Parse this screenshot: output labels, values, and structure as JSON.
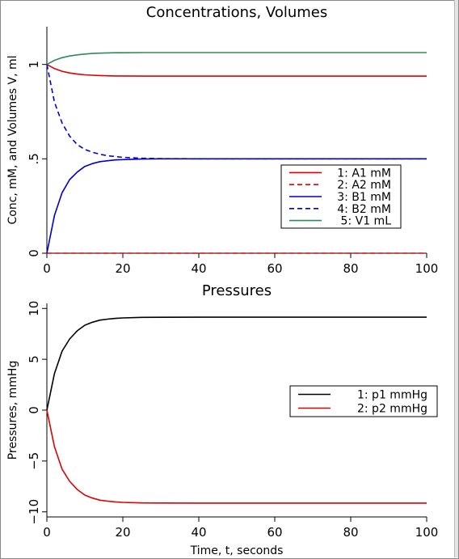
{
  "chart_data": [
    {
      "type": "line",
      "title": "Concentrations, Volumes",
      "xlabel": "",
      "ylabel": "Conc, mM, and Volumes V, ml",
      "xlim": [
        0,
        100
      ],
      "ylim": [
        0,
        1.2
      ],
      "xticks": [
        0,
        20,
        40,
        60,
        80,
        100
      ],
      "xtick_labels": [
        "0",
        "20",
        "40",
        "60",
        "80",
        "100"
      ],
      "yticks": [
        0,
        0.5,
        1
      ],
      "ytick_labels": [
        "0",
        ".5",
        "1"
      ],
      "grid": false,
      "legend_position": "center-right",
      "x": [
        0,
        2,
        4,
        6,
        8,
        10,
        12,
        14,
        16,
        18,
        20,
        25,
        30,
        40,
        50,
        60,
        70,
        80,
        90,
        100
      ],
      "series": [
        {
          "name": "1: A1 mM",
          "color": "#dd0000",
          "dash": "solid",
          "values": [
            1.0,
            0.978,
            0.964,
            0.955,
            0.949,
            0.945,
            0.943,
            0.941,
            0.94,
            0.939,
            0.939,
            0.938,
            0.938,
            0.938,
            0.938,
            0.938,
            0.938,
            0.938,
            0.938,
            0.938
          ]
        },
        {
          "name": "2: A2 mM",
          "color": "#dd0000",
          "dash": "dashed",
          "values": [
            0,
            0,
            0,
            0,
            0,
            0,
            0,
            0,
            0,
            0,
            0,
            0,
            0,
            0,
            0,
            0,
            0,
            0,
            0,
            0
          ]
        },
        {
          "name": "3: B1 mM",
          "color": "#0000cc",
          "dash": "solid",
          "values": [
            0,
            0.2,
            0.32,
            0.39,
            0.43,
            0.46,
            0.475,
            0.485,
            0.49,
            0.494,
            0.496,
            0.499,
            0.5,
            0.5,
            0.5,
            0.5,
            0.5,
            0.5,
            0.5,
            0.5
          ]
        },
        {
          "name": "4: B2 mM",
          "color": "#0000cc",
          "dash": "dashed",
          "values": [
            1.0,
            0.8,
            0.69,
            0.62,
            0.575,
            0.55,
            0.535,
            0.524,
            0.516,
            0.512,
            0.508,
            0.503,
            0.501,
            0.5,
            0.5,
            0.5,
            0.5,
            0.5,
            0.5,
            0.5
          ]
        },
        {
          "name": "5: V1 mL",
          "color": "#2e8b57",
          "dash": "solid",
          "values": [
            1.0,
            1.022,
            1.036,
            1.045,
            1.051,
            1.055,
            1.058,
            1.06,
            1.061,
            1.062,
            1.062,
            1.063,
            1.063,
            1.063,
            1.063,
            1.063,
            1.063,
            1.063,
            1.063,
            1.063
          ]
        }
      ]
    },
    {
      "type": "line",
      "title": "Pressures",
      "xlabel": "Time, t, seconds",
      "ylabel": "Pressures, mmHg",
      "xlim": [
        0,
        100
      ],
      "ylim": [
        -10.5,
        10.5
      ],
      "xticks": [
        0,
        20,
        40,
        60,
        80,
        100
      ],
      "xtick_labels": [
        "0",
        "20",
        "40",
        "60",
        "80",
        "100"
      ],
      "yticks": [
        -10,
        -5,
        0,
        5,
        10
      ],
      "ytick_labels": [
        "−10",
        "−5",
        "0",
        "5",
        "10"
      ],
      "grid": false,
      "legend_position": "center-right",
      "x": [
        0,
        2,
        4,
        6,
        8,
        10,
        12,
        14,
        16,
        18,
        20,
        25,
        30,
        40,
        50,
        60,
        70,
        80,
        90,
        100
      ],
      "series": [
        {
          "name": "1: p1 mmHg",
          "color": "#000000",
          "dash": "solid",
          "values": [
            0,
            3.6,
            5.8,
            7.0,
            7.8,
            8.35,
            8.65,
            8.85,
            8.95,
            9.02,
            9.07,
            9.12,
            9.13,
            9.14,
            9.14,
            9.14,
            9.14,
            9.14,
            9.14,
            9.14
          ]
        },
        {
          "name": "2: p2 mmHg",
          "color": "#dd0000",
          "dash": "solid",
          "values": [
            0,
            -3.6,
            -5.8,
            -7.0,
            -7.8,
            -8.35,
            -8.65,
            -8.85,
            -8.95,
            -9.02,
            -9.07,
            -9.12,
            -9.13,
            -9.14,
            -9.14,
            -9.14,
            -9.14,
            -9.14,
            -9.14,
            -9.14
          ]
        }
      ]
    }
  ]
}
